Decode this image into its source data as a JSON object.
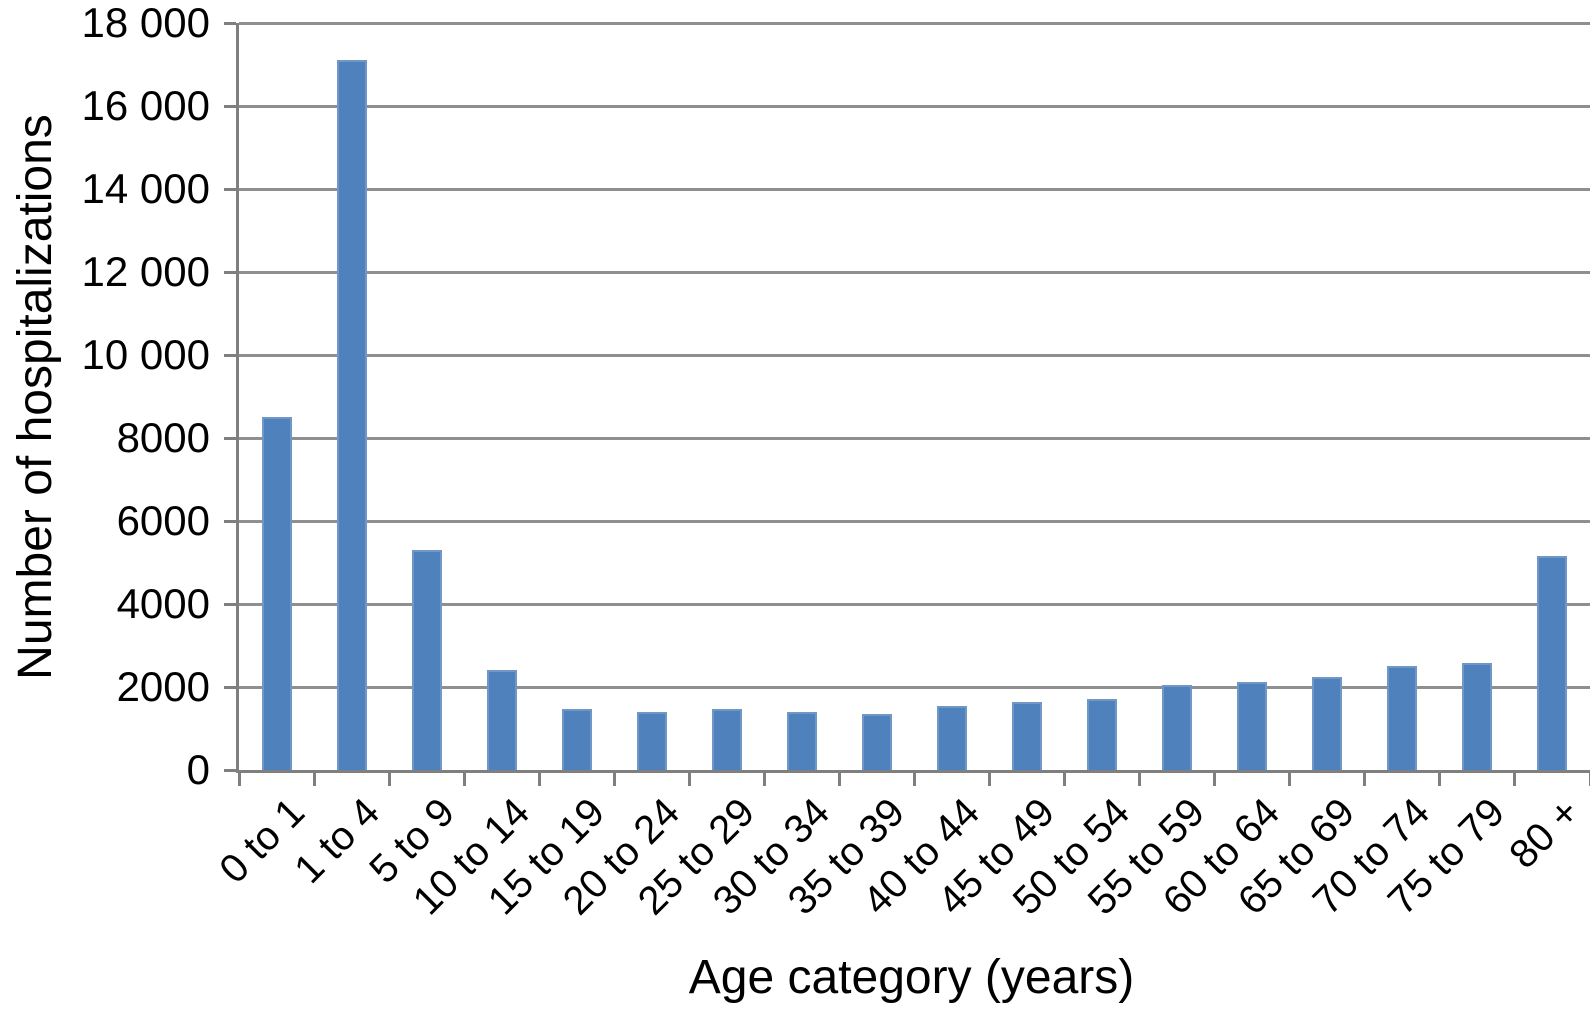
{
  "chart_data": {
    "type": "bar",
    "title": "",
    "xlabel": "Age category (years)",
    "ylabel": "Number of hospitalizations",
    "categories": [
      "0 to 1",
      "1 to 4",
      "5 to 9",
      "10 to 14",
      "15 to 19",
      "20 to 24",
      "25 to 29",
      "30 to 34",
      "35 to 39",
      "40 to 44",
      "45 to 49",
      "50 to 54",
      "55 to 59",
      "60 to 64",
      "65 to 69",
      "70 to 74",
      "75 to 79",
      "80 +"
    ],
    "values": [
      8500,
      17100,
      5290,
      2400,
      1470,
      1400,
      1470,
      1400,
      1360,
      1540,
      1640,
      1720,
      2060,
      2130,
      2250,
      2500,
      2580,
      5150
    ],
    "ylim": [
      0,
      18000
    ],
    "ytick_step": 2000,
    "ytick_labels": [
      "18 000",
      "16 000",
      "14 000",
      "12 000",
      "10 000",
      "8000",
      "6000",
      "4000",
      "2000",
      "0"
    ],
    "grid": "horizontal",
    "legend": "none",
    "bar_color": "#4f81bd",
    "bar_border_color": "#6f97c7",
    "gridline_color": "#8f8f8f",
    "axis_color": "#7f7f7f",
    "text_color": "#000000",
    "background": "#ffffff"
  }
}
